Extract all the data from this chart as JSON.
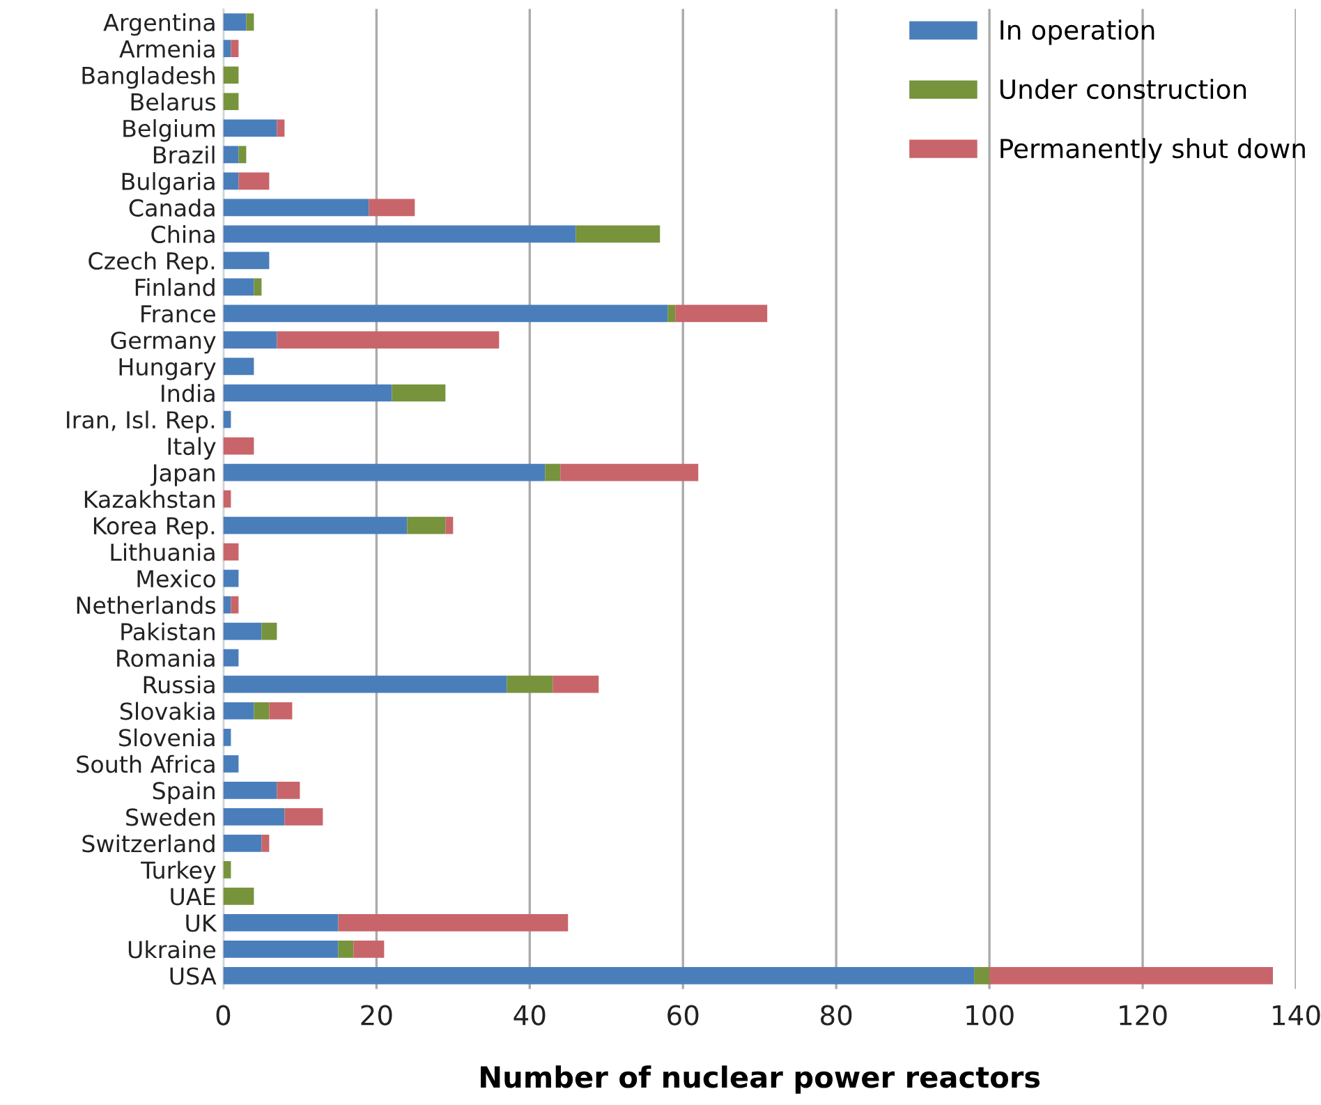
{
  "chart_data": {
    "type": "bar",
    "orientation": "horizontal",
    "stacked": true,
    "xlabel": "Number of nuclear power reactors",
    "categories": [
      "Argentina",
      "Armenia",
      "Bangladesh",
      "Belarus",
      "Belgium",
      "Brazil",
      "Bulgaria",
      "Canada",
      "China",
      "Czech Rep.",
      "Finland",
      "France",
      "Germany",
      "Hungary",
      "India",
      "Iran, Isl. Rep.",
      "Italy",
      "Japan",
      "Kazakhstan",
      "Korea Rep.",
      "Lithuania",
      "Mexico",
      "Netherlands",
      "Pakistan",
      "Romania",
      "Russia",
      "Slovakia",
      "Slovenia",
      "South Africa",
      "Spain",
      "Sweden",
      "Switzerland",
      "Turkey",
      "UAE",
      "UK",
      "Ukraine",
      "USA"
    ],
    "series": [
      {
        "name": "In operation",
        "color": "#4a7ebb",
        "values": [
          3,
          1,
          0,
          0,
          7,
          2,
          2,
          19,
          46,
          6,
          4,
          58,
          7,
          4,
          22,
          1,
          0,
          42,
          0,
          24,
          0,
          2,
          1,
          5,
          2,
          37,
          4,
          1,
          2,
          7,
          8,
          5,
          0,
          0,
          15,
          15,
          98
        ]
      },
      {
        "name": "Under construction",
        "color": "#77933c",
        "values": [
          1,
          0,
          2,
          2,
          0,
          1,
          0,
          0,
          11,
          0,
          1,
          1,
          0,
          0,
          7,
          0,
          0,
          2,
          0,
          5,
          0,
          0,
          0,
          2,
          0,
          6,
          2,
          0,
          0,
          0,
          0,
          0,
          1,
          4,
          0,
          2,
          2
        ]
      },
      {
        "name": "Permanently shut down",
        "color": "#c8656a",
        "values": [
          0,
          1,
          0,
          0,
          1,
          0,
          4,
          6,
          0,
          0,
          0,
          12,
          29,
          0,
          0,
          0,
          4,
          18,
          1,
          1,
          2,
          0,
          1,
          0,
          0,
          6,
          3,
          0,
          0,
          3,
          5,
          1,
          0,
          0,
          30,
          4,
          37
        ]
      }
    ],
    "xlim": [
      0,
      140
    ],
    "xticks": [
      0,
      20,
      40,
      60,
      80,
      100,
      120,
      140
    ],
    "grid": "x",
    "legend": "top right"
  }
}
